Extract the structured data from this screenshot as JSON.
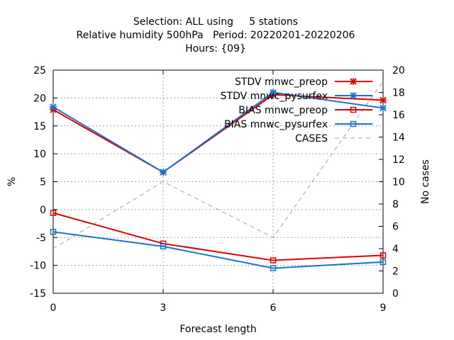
{
  "chart_data": {
    "type": "line",
    "title_lines": [
      "Selection: ALL using     5 stations",
      "Relative humidity 500hPa   Period: 20220201-20220206",
      "Hours: {09}"
    ],
    "xlabel": "Forecast length",
    "ylabel": "%",
    "y2label": "No cases",
    "x": [
      0,
      3,
      6,
      9
    ],
    "xlim": [
      0,
      9
    ],
    "ylim": [
      -15,
      25
    ],
    "y2lim": [
      0,
      20
    ],
    "yticks": [
      -15,
      -10,
      -5,
      0,
      5,
      10,
      15,
      20,
      25
    ],
    "y2ticks": [
      0,
      2,
      4,
      6,
      8,
      10,
      12,
      14,
      16,
      18,
      20
    ],
    "xticks": [
      0,
      3,
      6,
      9
    ],
    "grid": true,
    "legend_position": "top-right",
    "series": [
      {
        "name": "STDV mnwc_preop",
        "axis": "y1",
        "values": [
          17.9,
          6.7,
          20.6,
          19.6
        ],
        "color": "#e00000",
        "marker": "x",
        "dashed": false
      },
      {
        "name": "STDV mnwc_pysurfex",
        "axis": "y1",
        "values": [
          18.4,
          6.7,
          21.0,
          18.2
        ],
        "color": "#1874cd",
        "marker": "x",
        "dashed": false
      },
      {
        "name": "BIAS mnwc_preop",
        "axis": "y1",
        "values": [
          -0.6,
          -6.1,
          -9.1,
          -8.2
        ],
        "color": "#e00000",
        "marker": "square",
        "dashed": false
      },
      {
        "name": "BIAS mnwc_pysurfex",
        "axis": "y1",
        "values": [
          -4.0,
          -6.6,
          -10.5,
          -9.4
        ],
        "color": "#1874cd",
        "marker": "square",
        "dashed": false
      },
      {
        "name": "CASES",
        "axis": "y2",
        "values": [
          4,
          10,
          5,
          19
        ],
        "color": "#a0a0a0",
        "marker": "none",
        "dashed": true
      }
    ]
  }
}
